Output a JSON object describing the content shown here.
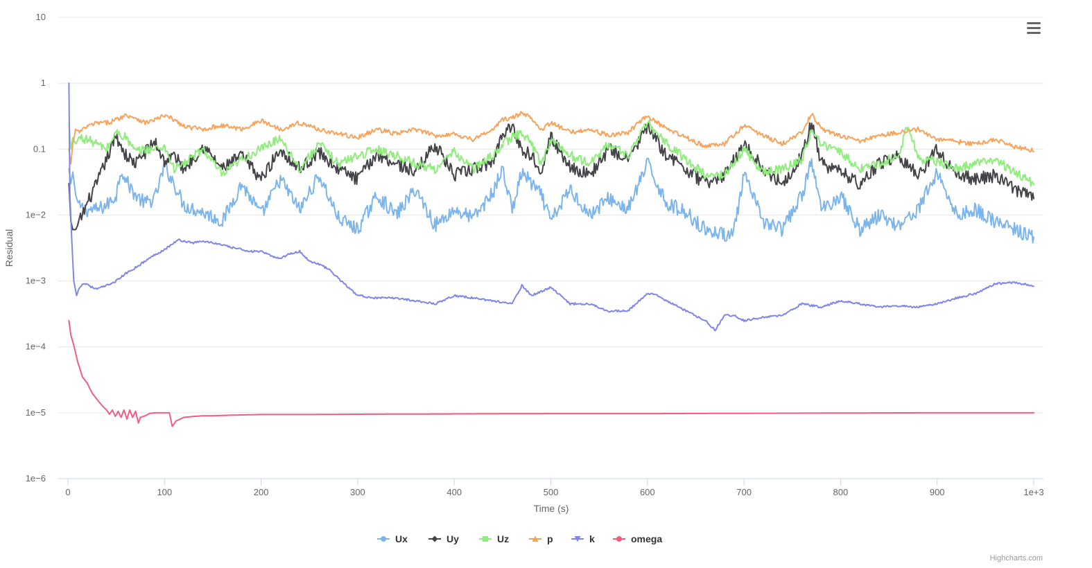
{
  "chart_data": {
    "type": "line",
    "title": "",
    "xlabel": "Time (s)",
    "ylabel": "Residual",
    "yscale": "log",
    "xlim": [
      0,
      1000
    ],
    "ylim": [
      1e-06,
      10
    ],
    "grid": true,
    "legend_position": "bottom-center",
    "x_ticks": [
      {
        "value": 0,
        "label": "0"
      },
      {
        "value": 100,
        "label": "100"
      },
      {
        "value": 200,
        "label": "200"
      },
      {
        "value": 300,
        "label": "300"
      },
      {
        "value": 400,
        "label": "400"
      },
      {
        "value": 500,
        "label": "500"
      },
      {
        "value": 600,
        "label": "600"
      },
      {
        "value": 700,
        "label": "700"
      },
      {
        "value": 800,
        "label": "800"
      },
      {
        "value": 900,
        "label": "900"
      },
      {
        "value": 1000,
        "label": "1e+3"
      }
    ],
    "y_ticks": [
      {
        "value": 10,
        "label": "10"
      },
      {
        "value": 1,
        "label": "1"
      },
      {
        "value": 0.1,
        "label": "0.1"
      },
      {
        "value": 0.01,
        "label": "1e−2"
      },
      {
        "value": 0.001,
        "label": "1e−3"
      },
      {
        "value": 0.0001,
        "label": "1e−4"
      },
      {
        "value": 1e-05,
        "label": "1e−5"
      },
      {
        "value": 1e-06,
        "label": "1e−6"
      }
    ],
    "series": [
      {
        "name": "Ux",
        "color": "#7cb5ec",
        "marker": "circle",
        "x": [
          1,
          3,
          5,
          8,
          12,
          20,
          30,
          40,
          50,
          55,
          62,
          70,
          80,
          90,
          100,
          110,
          120,
          140,
          160,
          180,
          200,
          220,
          240,
          260,
          280,
          300,
          320,
          340,
          360,
          380,
          400,
          420,
          440,
          450,
          460,
          470,
          480,
          490,
          500,
          520,
          540,
          560,
          580,
          600,
          620,
          640,
          660,
          680,
          690,
          700,
          720,
          740,
          760,
          770,
          780,
          800,
          820,
          840,
          860,
          880,
          900,
          920,
          940,
          960,
          980,
          1000
        ],
        "y": [
          0.05,
          0.03,
          0.045,
          0.02,
          0.013,
          0.012,
          0.012,
          0.014,
          0.02,
          0.05,
          0.03,
          0.02,
          0.015,
          0.018,
          0.055,
          0.03,
          0.014,
          0.011,
          0.008,
          0.03,
          0.01,
          0.035,
          0.012,
          0.04,
          0.009,
          0.006,
          0.02,
          0.01,
          0.025,
          0.007,
          0.012,
          0.009,
          0.022,
          0.05,
          0.012,
          0.045,
          0.03,
          0.02,
          0.008,
          0.025,
          0.01,
          0.018,
          0.012,
          0.06,
          0.015,
          0.011,
          0.006,
          0.005,
          0.006,
          0.04,
          0.008,
          0.006,
          0.02,
          0.065,
          0.012,
          0.02,
          0.006,
          0.01,
          0.007,
          0.012,
          0.045,
          0.01,
          0.012,
          0.008,
          0.006,
          0.0045
        ]
      },
      {
        "name": "Uy",
        "color": "#434348",
        "marker": "diamond",
        "x": [
          1,
          3,
          5,
          8,
          12,
          20,
          30,
          40,
          50,
          60,
          70,
          80,
          90,
          100,
          110,
          120,
          140,
          160,
          180,
          200,
          220,
          240,
          260,
          280,
          300,
          320,
          340,
          360,
          380,
          400,
          420,
          440,
          450,
          460,
          470,
          480,
          490,
          500,
          520,
          540,
          560,
          580,
          600,
          620,
          640,
          660,
          680,
          700,
          720,
          740,
          760,
          770,
          780,
          800,
          820,
          840,
          860,
          880,
          900,
          920,
          940,
          960,
          980,
          1000
        ],
        "y": [
          0.03,
          0.008,
          0.006,
          0.006,
          0.008,
          0.015,
          0.03,
          0.07,
          0.16,
          0.08,
          0.06,
          0.09,
          0.13,
          0.065,
          0.08,
          0.05,
          0.11,
          0.05,
          0.08,
          0.035,
          0.1,
          0.05,
          0.09,
          0.05,
          0.035,
          0.085,
          0.06,
          0.045,
          0.12,
          0.04,
          0.05,
          0.065,
          0.18,
          0.22,
          0.1,
          0.08,
          0.05,
          0.15,
          0.055,
          0.04,
          0.1,
          0.07,
          0.22,
          0.08,
          0.05,
          0.03,
          0.04,
          0.12,
          0.05,
          0.03,
          0.08,
          0.25,
          0.06,
          0.045,
          0.03,
          0.06,
          0.08,
          0.04,
          0.1,
          0.04,
          0.035,
          0.04,
          0.025,
          0.018
        ]
      },
      {
        "name": "Uz",
        "color": "#90ed7d",
        "marker": "square",
        "x": [
          1,
          3,
          5,
          8,
          12,
          20,
          30,
          40,
          50,
          60,
          70,
          80,
          90,
          100,
          110,
          120,
          140,
          160,
          180,
          200,
          220,
          240,
          260,
          280,
          300,
          320,
          340,
          360,
          380,
          400,
          420,
          440,
          450,
          460,
          470,
          480,
          490,
          500,
          520,
          540,
          560,
          580,
          600,
          620,
          640,
          660,
          680,
          700,
          720,
          740,
          760,
          770,
          780,
          800,
          820,
          840,
          860,
          870,
          880,
          900,
          920,
          940,
          960,
          980,
          1000
        ],
        "y": [
          0.25,
          0.1,
          0.15,
          0.12,
          0.15,
          0.14,
          0.12,
          0.1,
          0.18,
          0.15,
          0.09,
          0.1,
          0.1,
          0.11,
          0.05,
          0.06,
          0.1,
          0.04,
          0.07,
          0.1,
          0.15,
          0.05,
          0.12,
          0.06,
          0.08,
          0.1,
          0.08,
          0.06,
          0.05,
          0.09,
          0.05,
          0.08,
          0.12,
          0.15,
          0.18,
          0.12,
          0.06,
          0.14,
          0.08,
          0.06,
          0.12,
          0.08,
          0.25,
          0.12,
          0.07,
          0.04,
          0.04,
          0.1,
          0.045,
          0.05,
          0.07,
          0.2,
          0.12,
          0.09,
          0.05,
          0.06,
          0.08,
          0.25,
          0.07,
          0.065,
          0.05,
          0.06,
          0.07,
          0.045,
          0.03
        ]
      },
      {
        "name": "p",
        "color": "#f7a35c",
        "marker": "triangle",
        "x": [
          1,
          3,
          5,
          8,
          12,
          20,
          30,
          40,
          50,
          60,
          70,
          80,
          90,
          100,
          110,
          120,
          140,
          160,
          180,
          200,
          220,
          240,
          260,
          280,
          300,
          320,
          340,
          360,
          380,
          400,
          420,
          440,
          450,
          460,
          470,
          480,
          490,
          500,
          520,
          540,
          560,
          580,
          600,
          620,
          640,
          660,
          680,
          700,
          720,
          740,
          760,
          770,
          780,
          800,
          820,
          840,
          860,
          880,
          900,
          920,
          940,
          960,
          980,
          1000
        ],
        "y": [
          0.1,
          0.06,
          0.12,
          0.2,
          0.18,
          0.22,
          0.25,
          0.25,
          0.28,
          0.33,
          0.3,
          0.25,
          0.28,
          0.32,
          0.28,
          0.22,
          0.2,
          0.23,
          0.2,
          0.27,
          0.2,
          0.25,
          0.2,
          0.17,
          0.15,
          0.2,
          0.17,
          0.2,
          0.16,
          0.17,
          0.14,
          0.2,
          0.28,
          0.3,
          0.35,
          0.3,
          0.2,
          0.25,
          0.18,
          0.2,
          0.16,
          0.18,
          0.32,
          0.2,
          0.15,
          0.11,
          0.12,
          0.23,
          0.16,
          0.12,
          0.18,
          0.35,
          0.2,
          0.16,
          0.13,
          0.16,
          0.18,
          0.2,
          0.14,
          0.13,
          0.12,
          0.14,
          0.11,
          0.095
        ]
      },
      {
        "name": "k",
        "color": "#8085e9",
        "marker": "triangle-down",
        "x": [
          1,
          2,
          4,
          6,
          9,
          12,
          15,
          20,
          25,
          30,
          35,
          40,
          50,
          60,
          70,
          80,
          90,
          100,
          110,
          115,
          120,
          130,
          140,
          150,
          160,
          170,
          180,
          190,
          200,
          210,
          220,
          230,
          240,
          250,
          260,
          270,
          280,
          290,
          300,
          320,
          340,
          360,
          380,
          400,
          420,
          440,
          460,
          470,
          480,
          500,
          520,
          540,
          560,
          580,
          600,
          610,
          620,
          640,
          660,
          670,
          680,
          690,
          700,
          720,
          740,
          760,
          780,
          800,
          820,
          840,
          860,
          880,
          900,
          920,
          940,
          960,
          980,
          1000
        ],
        "y": [
          1,
          0.02,
          0.004,
          0.001,
          0.0006,
          0.0008,
          0.0009,
          0.0009,
          0.0008,
          0.00075,
          0.0008,
          0.00085,
          0.001,
          0.0013,
          0.0016,
          0.002,
          0.0025,
          0.003,
          0.0038,
          0.0042,
          0.004,
          0.0038,
          0.004,
          0.0038,
          0.0035,
          0.0032,
          0.003,
          0.0028,
          0.0028,
          0.0024,
          0.0022,
          0.0026,
          0.0028,
          0.002,
          0.0018,
          0.0015,
          0.0011,
          0.0008,
          0.0006,
          0.00055,
          0.00055,
          0.0005,
          0.00045,
          0.0006,
          0.00055,
          0.0005,
          0.00045,
          0.00085,
          0.0006,
          0.0008,
          0.00045,
          0.00045,
          0.00035,
          0.00035,
          0.00065,
          0.0006,
          0.0005,
          0.00035,
          0.00025,
          0.00018,
          0.0003,
          0.0003,
          0.00025,
          0.00028,
          0.0003,
          0.00045,
          0.0004,
          0.0005,
          0.00045,
          0.0004,
          0.00042,
          0.0004,
          0.00045,
          0.00055,
          0.00065,
          0.0009,
          0.00095,
          0.00085
        ]
      },
      {
        "name": "omega",
        "color": "#f15c80",
        "marker": "circle",
        "x": [
          1,
          3,
          5,
          8,
          10,
          15,
          20,
          25,
          30,
          35,
          40,
          43,
          46,
          49,
          52,
          55,
          58,
          61,
          64,
          67,
          70,
          73,
          75,
          80,
          85,
          90,
          100,
          105,
          108,
          112,
          120,
          130,
          140,
          150,
          170,
          200,
          250,
          300,
          400,
          500,
          600,
          700,
          800,
          900,
          1000
        ],
        "y": [
          0.00025,
          0.00015,
          0.00012,
          8e-05,
          6e-05,
          3.5e-05,
          2.8e-05,
          2e-05,
          1.6e-05,
          1.3e-05,
          1.1e-05,
          9.5e-06,
          1.1e-05,
          8.8e-06,
          1.05e-05,
          8.5e-06,
          1.1e-05,
          8e-06,
          1.1e-05,
          8.5e-06,
          1.05e-05,
          7e-06,
          8.5e-06,
          9e-06,
          9.8e-06,
          1e-05,
          1e-05,
          1e-05,
          6.2e-06,
          7.5e-06,
          8.5e-06,
          8.8e-06,
          9e-06,
          9e-06,
          9.2e-06,
          9.4e-06,
          9.4e-06,
          9.5e-06,
          9.6e-06,
          9.7e-06,
          9.7e-06,
          9.8e-06,
          9.9e-06,
          1e-05,
          1e-05
        ]
      }
    ]
  },
  "ui": {
    "menu_icon": "hamburger-menu-icon",
    "credits": "Highcharts.com"
  }
}
